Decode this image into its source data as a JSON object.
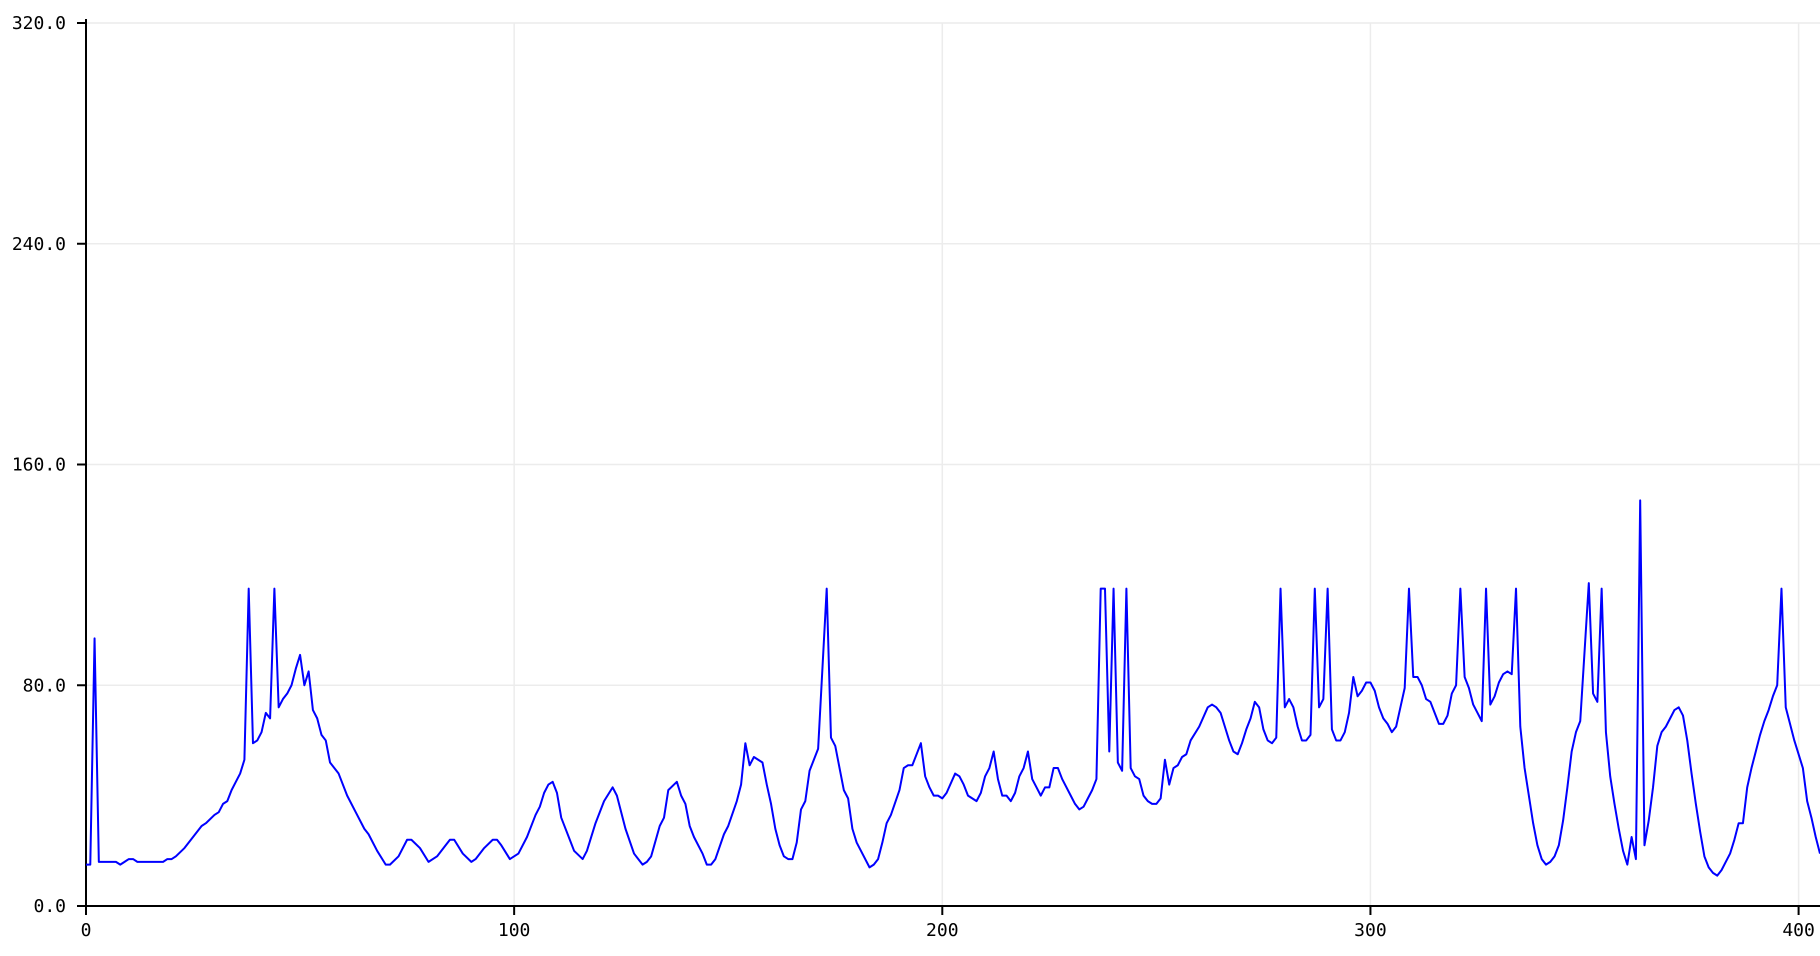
{
  "chart_data": {
    "type": "line",
    "color": "#0000ff",
    "grid": true,
    "xlim": [
      0,
      405
    ],
    "ylim": [
      0,
      320
    ],
    "xticks": [
      0,
      100,
      200,
      300,
      400
    ],
    "yticks": [
      {
        "value": 0,
        "label": "0.0"
      },
      {
        "value": 80,
        "label": "80.0"
      },
      {
        "value": 160,
        "label": "160.0"
      },
      {
        "value": 240,
        "label": "240.0"
      },
      {
        "value": 320,
        "label": "320.0"
      }
    ],
    "x": [
      0,
      1,
      2,
      3,
      4,
      5,
      6,
      7,
      8,
      9,
      10,
      11,
      12,
      14,
      16,
      18,
      19,
      20,
      21,
      23,
      25,
      27,
      28,
      30,
      31,
      32,
      33,
      34,
      35,
      36,
      37,
      38,
      39,
      40,
      41,
      42,
      43,
      44,
      45,
      46,
      47,
      48,
      49,
      50,
      51,
      52,
      53,
      54,
      55,
      56,
      57,
      59,
      61,
      63,
      65,
      66,
      68,
      70,
      71,
      73,
      75,
      76,
      78,
      80,
      82,
      84,
      85,
      86,
      88,
      90,
      91,
      93,
      95,
      96,
      97,
      99,
      101,
      103,
      105,
      106,
      107,
      108,
      109,
      110,
      111,
      113,
      114,
      116,
      117,
      119,
      121,
      123,
      124,
      126,
      128,
      130,
      131,
      132,
      134,
      135,
      136,
      138,
      139,
      140,
      141,
      142,
      144,
      145,
      146,
      147,
      149,
      150,
      152,
      153,
      154,
      155,
      156,
      158,
      159,
      160,
      161,
      162,
      163,
      164,
      165,
      166,
      167,
      168,
      169,
      170,
      171,
      173,
      174,
      175,
      176,
      177,
      178,
      179,
      180,
      181,
      183,
      184,
      185,
      186,
      187,
      188,
      190,
      191,
      192,
      193,
      195,
      196,
      197,
      198,
      199,
      200,
      201,
      203,
      204,
      205,
      206,
      208,
      209,
      210,
      211,
      212,
      213,
      214,
      215,
      216,
      217,
      218,
      219,
      220,
      221,
      222,
      223,
      224,
      225,
      226,
      227,
      228,
      230,
      231,
      232,
      233,
      234,
      235,
      236,
      237,
      238,
      239,
      240,
      241,
      242,
      243,
      244,
      245,
      246,
      247,
      248,
      249,
      250,
      251,
      252,
      253,
      254,
      255,
      256,
      257,
      258,
      260,
      262,
      263,
      264,
      265,
      266,
      267,
      268,
      269,
      270,
      271,
      272,
      273,
      274,
      275,
      276,
      277,
      278,
      279,
      280,
      281,
      282,
      283,
      284,
      285,
      286,
      287,
      288,
      289,
      290,
      291,
      292,
      293,
      294,
      295,
      296,
      297,
      298,
      299,
      300,
      301,
      302,
      303,
      304,
      305,
      306,
      307,
      308,
      309,
      310,
      311,
      312,
      313,
      314,
      315,
      316,
      317,
      318,
      319,
      320,
      321,
      322,
      323,
      324,
      325,
      326,
      327,
      328,
      329,
      330,
      331,
      332,
      333,
      334,
      335,
      336,
      337,
      338,
      339,
      340,
      341,
      342,
      343,
      344,
      345,
      346,
      347,
      348,
      349,
      351,
      352,
      353,
      354,
      355,
      356,
      357,
      358,
      359,
      360,
      361,
      362,
      363,
      364,
      365,
      366,
      367,
      368,
      369,
      370,
      371,
      372,
      373,
      374,
      375,
      376,
      377,
      378,
      379,
      380,
      381,
      382,
      383,
      384,
      385,
      386,
      387,
      388,
      389,
      390,
      391,
      392,
      393,
      394,
      395,
      396,
      397,
      398,
      399,
      400,
      401,
      402,
      403,
      404,
      405
    ],
    "values": [
      15,
      15,
      97,
      16,
      16,
      16,
      16,
      16,
      15,
      16,
      17,
      17,
      16,
      16,
      16,
      16,
      17,
      17,
      18,
      21,
      25,
      29,
      30,
      33,
      34,
      37,
      38,
      42,
      45,
      48,
      53,
      115,
      59,
      60,
      63,
      70,
      68,
      115,
      72,
      75,
      77,
      80,
      86,
      91,
      80,
      85,
      71,
      68,
      62,
      60,
      52,
      48,
      40,
      34,
      28,
      26,
      20,
      15,
      15,
      18,
      24,
      24,
      21,
      16,
      18,
      22,
      24,
      24,
      19,
      16,
      17,
      21,
      24,
      24,
      22,
      17,
      19,
      25,
      33,
      36,
      41,
      44,
      45,
      41,
      32,
      24,
      20,
      17,
      20,
      30,
      38,
      43,
      40,
      28,
      19,
      15,
      16,
      18,
      29,
      32,
      42,
      45,
      40,
      37,
      29,
      25,
      19,
      15,
      15,
      17,
      26,
      29,
      38,
      44,
      59,
      51,
      54,
      52,
      44,
      37,
      28,
      22,
      18,
      17,
      17,
      23,
      35,
      38,
      49,
      53,
      57,
      115,
      61,
      58,
      50,
      42,
      39,
      28,
      23,
      20,
      14,
      15,
      17,
      23,
      30,
      33,
      42,
      50,
      51,
      51,
      59,
      47,
      43,
      40,
      40,
      39,
      41,
      48,
      47,
      44,
      40,
      38,
      41,
      47,
      50,
      56,
      46,
      40,
      40,
      38,
      41,
      47,
      50,
      56,
      46,
      43,
      40,
      43,
      43,
      50,
      50,
      46,
      40,
      37,
      35,
      36,
      39,
      42,
      46,
      115,
      115,
      56,
      115,
      52,
      49,
      115,
      50,
      47,
      46,
      40,
      38,
      37,
      37,
      39,
      53,
      44,
      50,
      51,
      54,
      55,
      60,
      65,
      72,
      73,
      72,
      70,
      65,
      60,
      56,
      55,
      59,
      64,
      68,
      74,
      72,
      64,
      60,
      59,
      61,
      115,
      72,
      75,
      72,
      65,
      60,
      60,
      62,
      115,
      72,
      75,
      115,
      64,
      60,
      60,
      63,
      70,
      83,
      76,
      78,
      81,
      81,
      78,
      72,
      68,
      66,
      63,
      65,
      72,
      79,
      115,
      83,
      83,
      80,
      75,
      74,
      70,
      66,
      66,
      69,
      77,
      80,
      115,
      83,
      79,
      73,
      70,
      67,
      115,
      73,
      76,
      81,
      84,
      85,
      84,
      115,
      65,
      50,
      40,
      30,
      22,
      17,
      15,
      16,
      18,
      22,
      31,
      43,
      56,
      63,
      67,
      117,
      77,
      74,
      115,
      63,
      47,
      37,
      28,
      20,
      15,
      25,
      17,
      147,
      22,
      31,
      43,
      58,
      63,
      65,
      68,
      71,
      72,
      69,
      60,
      48,
      37,
      27,
      18,
      14,
      12,
      11,
      13,
      16,
      19,
      24,
      30,
      30,
      43,
      50,
      56,
      62,
      67,
      71,
      76,
      80,
      115,
      72,
      66,
      60,
      55,
      50,
      38,
      32,
      25,
      19
    ]
  }
}
